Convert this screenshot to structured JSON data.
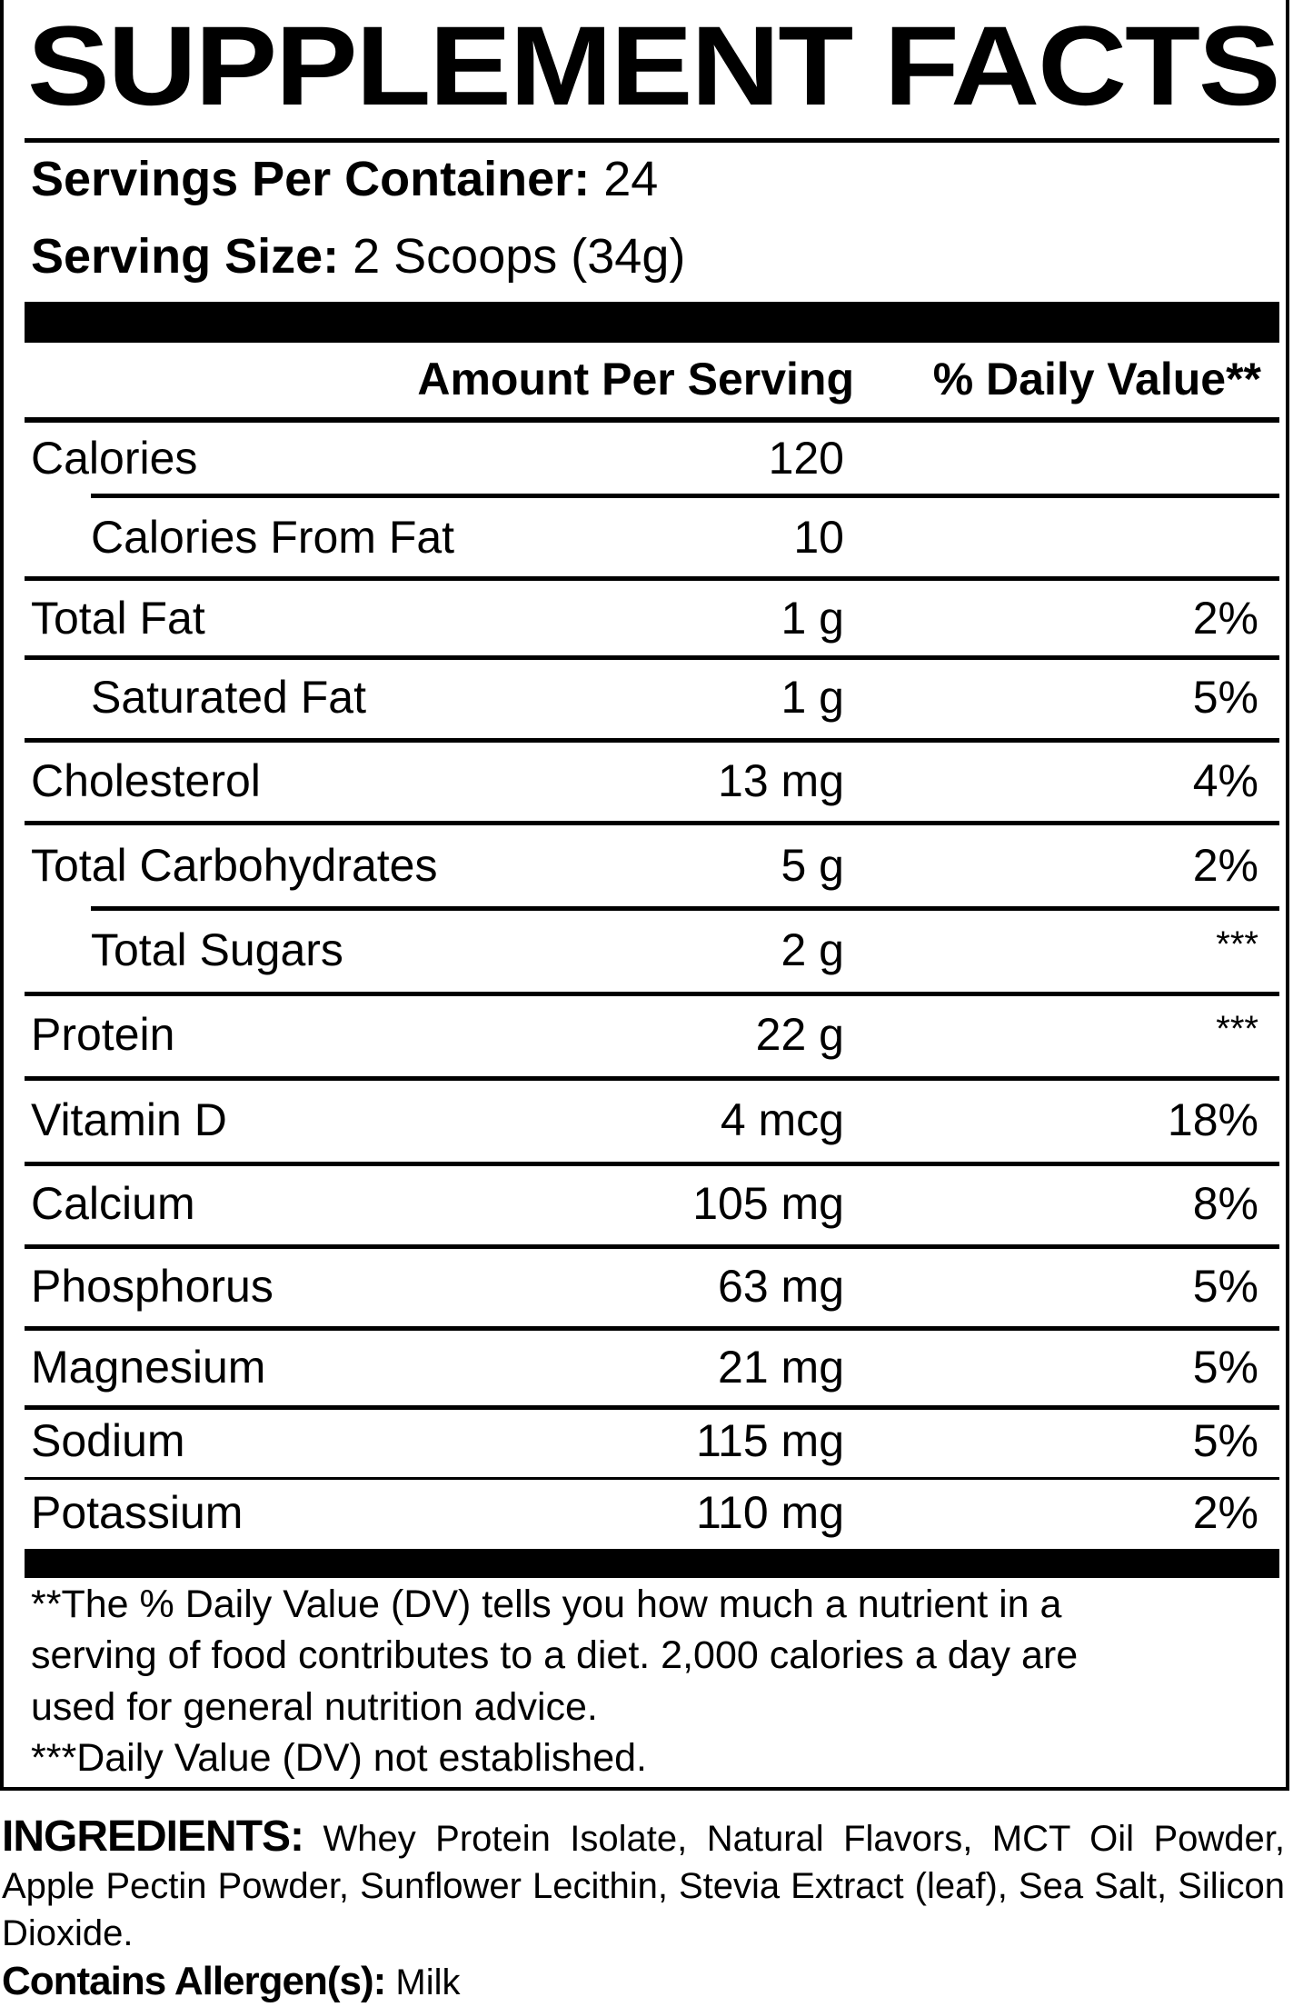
{
  "title": "SUPPLEMENT FACTS",
  "servings_per_container": {
    "label": "Servings Per Container:",
    "value": "24"
  },
  "serving_size": {
    "label": "Serving Size:",
    "value": "2 Scoops (34g)"
  },
  "columns": {
    "amount": "Amount Per Serving",
    "daily_value": "% Daily Value**"
  },
  "nutrients": [
    {
      "name": "Calories",
      "amount": "120",
      "dv": "",
      "indent": false
    },
    {
      "name": "Calories From Fat",
      "amount": "10",
      "dv": "",
      "indent": true
    },
    {
      "name": "Total Fat",
      "amount": "1 g",
      "dv": "2%",
      "indent": false
    },
    {
      "name": "Saturated Fat",
      "amount": "1 g",
      "dv": "5%",
      "indent": true
    },
    {
      "name": "Cholesterol",
      "amount": "13 mg",
      "dv": "4%",
      "indent": false
    },
    {
      "name": "Total Carbohydrates",
      "amount": "5 g",
      "dv": "2%",
      "indent": false
    },
    {
      "name": "Total Sugars",
      "amount": "2 g",
      "dv": "***",
      "indent": true
    },
    {
      "name": "Protein",
      "amount": "22 g",
      "dv": "***",
      "indent": false
    },
    {
      "name": "Vitamin D",
      "amount": "4 mcg",
      "dv": "18%",
      "indent": false
    },
    {
      "name": "Calcium",
      "amount": "105 mg",
      "dv": "8%",
      "indent": false
    },
    {
      "name": "Phosphorus",
      "amount": "63 mg",
      "dv": "5%",
      "indent": false
    },
    {
      "name": "Magnesium",
      "amount": "21 mg",
      "dv": "5%",
      "indent": false
    },
    {
      "name": "Sodium",
      "amount": "115 mg",
      "dv": "5%",
      "indent": false
    },
    {
      "name": "Potassium",
      "amount": "110 mg",
      "dv": "2%",
      "indent": false
    }
  ],
  "footnotes": [
    "**The % Daily Value (DV) tells you how much a nutrient in a",
    "serving of food contributes to a diet. 2,000 calories a day are",
    "used for general nutrition advice.",
    "***Daily Value (DV) not established."
  ],
  "ingredients": {
    "label": "INGREDIENTS:",
    "text": "Whey Protein Isolate, Natural Flavors, MCT Oil Powder, Apple Pectin Powder, Sunflower Lecithin, Stevia Extract (leaf), Sea Salt, Silicon Dioxide."
  },
  "allergens": {
    "label": "Contains Allergen(s):",
    "text": "Milk"
  }
}
